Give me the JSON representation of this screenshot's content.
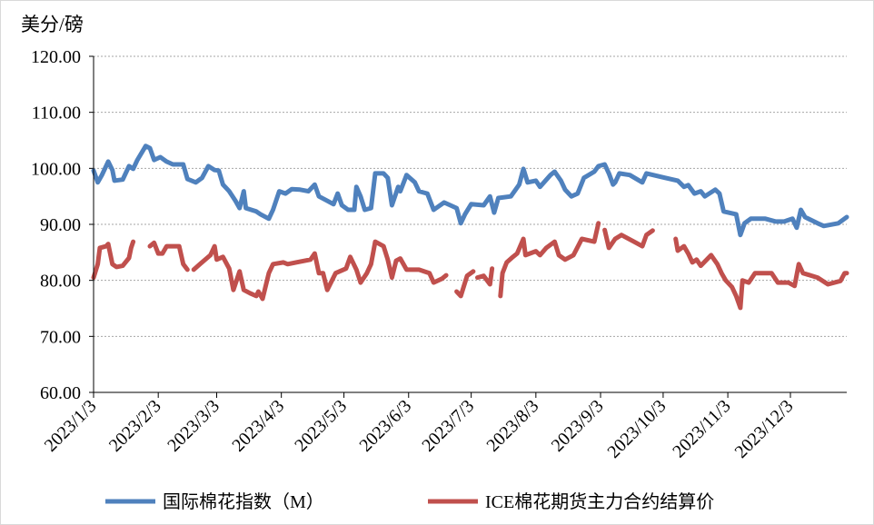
{
  "chart_data": {
    "type": "line",
    "ylabel": "美分/磅",
    "ylim": [
      60,
      120
    ],
    "yticks": [
      60,
      70,
      80,
      90,
      100,
      110,
      120
    ],
    "ytick_labels": [
      "60.00",
      "70.00",
      "80.00",
      "90.00",
      "100.00",
      "110.00",
      "120.00"
    ],
    "x_unit": "days since 2023/1/3",
    "xlim": [
      0,
      361
    ],
    "xticks": [
      0,
      31,
      59,
      90,
      120,
      151,
      181,
      212,
      243,
      273,
      304,
      334
    ],
    "xtick_labels": [
      "2023/1/3",
      "2023/2/3",
      "2023/3/3",
      "2023/4/3",
      "2023/5/3",
      "2023/6/3",
      "2023/7/3",
      "2023/8/3",
      "2023/9/3",
      "2023/10/3",
      "2023/11/3",
      "2023/12/3"
    ],
    "grid": "horizontal dotted",
    "legend_position": "bottom",
    "series": [
      {
        "name": "国际棉花指数（M）",
        "color": "#4F81BD",
        "points": [
          [
            0,
            99.6
          ],
          [
            2,
            97.5
          ],
          [
            4,
            98.8
          ],
          [
            7,
            101.2
          ],
          [
            9,
            99.7
          ],
          [
            10,
            97.8
          ],
          [
            14,
            98.0
          ],
          [
            17,
            100.4
          ],
          [
            19,
            99.9
          ],
          [
            21,
            101.5
          ],
          [
            25,
            104.0
          ],
          [
            27,
            103.6
          ],
          [
            29,
            101.5
          ],
          [
            32,
            102.0
          ],
          [
            35,
            101.2
          ],
          [
            38,
            100.7
          ],
          [
            43,
            100.7
          ],
          [
            45,
            98.1
          ],
          [
            49,
            97.5
          ],
          [
            52,
            98.3
          ],
          [
            55,
            100.4
          ],
          [
            58,
            99.7
          ],
          [
            60,
            99.6
          ],
          [
            62,
            97.1
          ],
          [
            65,
            95.9
          ],
          [
            68,
            94.2
          ],
          [
            70,
            92.9
          ],
          [
            72,
            95.9
          ],
          [
            73,
            92.9
          ],
          [
            78,
            92.3
          ],
          [
            80,
            91.8
          ],
          [
            84,
            91.0
          ],
          [
            86,
            92.6
          ],
          [
            89,
            95.9
          ],
          [
            92,
            95.5
          ],
          [
            95,
            96.3
          ],
          [
            99,
            96.2
          ],
          [
            103,
            95.9
          ],
          [
            106,
            97.1
          ],
          [
            108,
            95.0
          ],
          [
            112,
            94.2
          ],
          [
            115,
            93.6
          ],
          [
            117,
            95.5
          ],
          [
            119,
            93.4
          ],
          [
            122,
            92.6
          ],
          [
            125,
            92.6
          ],
          [
            126,
            96.7
          ],
          [
            128,
            95.0
          ],
          [
            130,
            92.6
          ],
          [
            133,
            92.9
          ],
          [
            135,
            99.1
          ],
          [
            139,
            99.1
          ],
          [
            141,
            98.3
          ],
          [
            143,
            93.4
          ],
          [
            146,
            96.7
          ],
          [
            147,
            95.9
          ],
          [
            150,
            98.8
          ],
          [
            154,
            97.5
          ],
          [
            156,
            95.9
          ],
          [
            160,
            95.5
          ],
          [
            163,
            92.6
          ],
          [
            168,
            93.9
          ],
          [
            174,
            92.9
          ],
          [
            176,
            90.2
          ],
          [
            178,
            91.8
          ],
          [
            181,
            93.6
          ],
          [
            187,
            93.4
          ],
          [
            190,
            95.0
          ],
          [
            192,
            92.1
          ],
          [
            194,
            94.7
          ],
          [
            200,
            95.0
          ],
          [
            204,
            97.1
          ],
          [
            206,
            99.9
          ],
          [
            208,
            97.5
          ],
          [
            212,
            97.8
          ],
          [
            214,
            96.7
          ],
          [
            219,
            98.8
          ],
          [
            221,
            99.4
          ],
          [
            224,
            97.8
          ],
          [
            226,
            96.2
          ],
          [
            229,
            95.0
          ],
          [
            232,
            95.5
          ],
          [
            235,
            98.3
          ],
          [
            240,
            99.4
          ],
          [
            242,
            100.4
          ],
          [
            245,
            100.7
          ],
          [
            247,
            99.1
          ],
          [
            249,
            97.1
          ],
          [
            250,
            97.5
          ],
          [
            252,
            99.1
          ],
          [
            257,
            98.8
          ],
          [
            263,
            97.5
          ],
          [
            265,
            99.1
          ],
          [
            274,
            98.3
          ],
          [
            280,
            97.8
          ],
          [
            283,
            96.7
          ],
          [
            285,
            97.0
          ],
          [
            288,
            95.5
          ],
          [
            291,
            95.9
          ],
          [
            293,
            95.0
          ],
          [
            298,
            96.2
          ],
          [
            300,
            95.5
          ],
          [
            302,
            92.3
          ],
          [
            308,
            91.8
          ],
          [
            310,
            88.1
          ],
          [
            312,
            90.2
          ],
          [
            315,
            91.0
          ],
          [
            322,
            91.0
          ],
          [
            327,
            90.5
          ],
          [
            331,
            90.5
          ],
          [
            335,
            91.0
          ],
          [
            337,
            89.4
          ],
          [
            339,
            92.6
          ],
          [
            341,
            91.3
          ],
          [
            347,
            90.2
          ],
          [
            350,
            89.7
          ],
          [
            357,
            90.2
          ],
          [
            361,
            91.3
          ]
        ]
      },
      {
        "name": "ICE棉花期货主力合约结算价",
        "color": "#C0504D",
        "points": [
          [
            0,
            80.5
          ],
          [
            2,
            82.9
          ],
          [
            3,
            85.8
          ],
          [
            6,
            86.1
          ],
          [
            7,
            86.5
          ],
          [
            9,
            82.9
          ],
          [
            11,
            82.4
          ],
          [
            14,
            82.6
          ],
          [
            17,
            84.0
          ],
          [
            18,
            85.8
          ],
          [
            19,
            86.9
          ],
          null,
          [
            27,
            86.1
          ],
          [
            29,
            86.7
          ],
          [
            31,
            84.8
          ],
          [
            33,
            84.8
          ],
          [
            35,
            86.1
          ],
          [
            41,
            86.1
          ],
          [
            43,
            82.9
          ],
          [
            45,
            81.9
          ],
          null,
          [
            48,
            81.9
          ],
          [
            51,
            82.9
          ],
          [
            56,
            84.5
          ],
          [
            58,
            86.1
          ],
          [
            59,
            83.7
          ],
          [
            62,
            84.2
          ],
          [
            65,
            82.1
          ],
          [
            67,
            78.3
          ],
          [
            70,
            81.6
          ],
          [
            72,
            78.3
          ],
          [
            75,
            77.7
          ],
          [
            78,
            77.2
          ],
          [
            79,
            78.0
          ],
          [
            81,
            76.7
          ],
          [
            84,
            81.3
          ],
          [
            86,
            82.9
          ],
          [
            91,
            83.2
          ],
          [
            93,
            82.9
          ],
          [
            97,
            83.2
          ],
          [
            104,
            83.7
          ],
          [
            106,
            84.8
          ],
          [
            108,
            81.3
          ],
          [
            110,
            81.3
          ],
          [
            112,
            78.3
          ],
          [
            116,
            81.3
          ],
          [
            121,
            82.1
          ],
          [
            123,
            84.2
          ],
          [
            126,
            81.9
          ],
          [
            128,
            79.6
          ],
          [
            131,
            81.3
          ],
          [
            133,
            82.9
          ],
          [
            135,
            86.9
          ],
          [
            139,
            86.1
          ],
          [
            141,
            83.7
          ],
          [
            143,
            80.5
          ],
          [
            145,
            83.5
          ],
          [
            147,
            83.9
          ],
          [
            150,
            81.9
          ],
          [
            156,
            81.9
          ],
          [
            161,
            81.3
          ],
          [
            163,
            79.6
          ],
          [
            167,
            80.3
          ],
          [
            169,
            80.9
          ],
          null,
          [
            174,
            78.0
          ],
          [
            176,
            77.2
          ],
          [
            179,
            80.8
          ],
          [
            182,
            81.6
          ],
          null,
          [
            184,
            80.5
          ],
          [
            187,
            80.8
          ],
          [
            190,
            79.3
          ],
          [
            191,
            82.1
          ],
          null,
          [
            195,
            77.2
          ],
          [
            196,
            81.3
          ],
          [
            198,
            83.2
          ],
          [
            201,
            84.2
          ],
          [
            203,
            84.8
          ],
          [
            206,
            87.4
          ],
          [
            207,
            84.5
          ],
          [
            212,
            85.2
          ],
          [
            214,
            84.5
          ],
          [
            217,
            85.8
          ],
          [
            221,
            86.9
          ],
          [
            223,
            84.5
          ],
          [
            226,
            83.7
          ],
          [
            230,
            84.5
          ],
          [
            234,
            87.4
          ],
          [
            240,
            86.9
          ],
          [
            242,
            90.2
          ],
          null,
          [
            245,
            89.0
          ],
          [
            247,
            85.8
          ],
          [
            250,
            87.4
          ],
          [
            253,
            88.1
          ],
          [
            259,
            86.9
          ],
          [
            263,
            86.1
          ],
          [
            265,
            88.1
          ],
          [
            268,
            88.9
          ],
          null,
          [
            279,
            87.4
          ],
          [
            280,
            85.3
          ],
          [
            283,
            86.1
          ],
          [
            285,
            84.8
          ],
          [
            287,
            83.2
          ],
          [
            289,
            83.7
          ],
          [
            291,
            82.6
          ],
          [
            296,
            84.5
          ],
          [
            299,
            82.9
          ],
          [
            301,
            81.3
          ],
          [
            303,
            80.0
          ],
          [
            306,
            78.8
          ],
          [
            308,
            77.2
          ],
          [
            310,
            75.1
          ],
          [
            311,
            80.0
          ],
          [
            314,
            79.6
          ],
          [
            317,
            81.3
          ],
          [
            322,
            81.3
          ],
          [
            325,
            81.3
          ],
          [
            328,
            79.6
          ],
          [
            333,
            79.6
          ],
          [
            336,
            79.0
          ],
          [
            338,
            82.9
          ],
          [
            340,
            81.3
          ],
          [
            347,
            80.5
          ],
          [
            352,
            79.3
          ],
          [
            358,
            79.9
          ],
          [
            360,
            81.3
          ],
          [
            361,
            81.3
          ]
        ]
      }
    ]
  }
}
